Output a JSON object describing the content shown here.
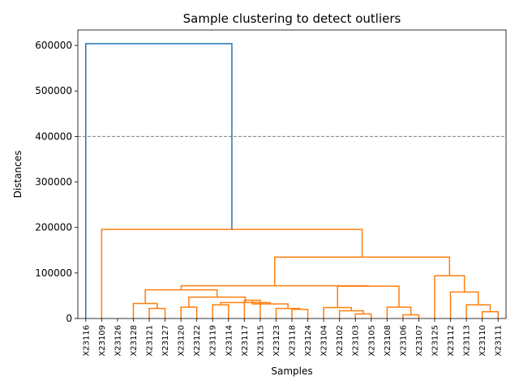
{
  "chart_data": {
    "type": "dendrogram",
    "title": "Sample clustering to detect outliers",
    "xlabel": "Samples",
    "ylabel": "Distances",
    "ylim": [
      0,
      634000
    ],
    "yticks": [
      0,
      100000,
      200000,
      300000,
      400000,
      500000,
      600000
    ],
    "ytick_labels": [
      "0",
      "100000",
      "200000",
      "300000",
      "400000",
      "500000",
      "600000"
    ],
    "threshold": 400000,
    "leaves": [
      "X23116",
      "X23109",
      "X23126",
      "X23128",
      "X23121",
      "X23127",
      "X23120",
      "X23122",
      "X23119",
      "X23114",
      "X23117",
      "X23115",
      "X23123",
      "X23118",
      "X23124",
      "X23104",
      "X23102",
      "X23103",
      "X23105",
      "X23108",
      "X23106",
      "X23107",
      "X23125",
      "X23112",
      "X23113",
      "X23110",
      "X23111"
    ],
    "colors": {
      "top": "#1f77b4",
      "cluster": "#ff7f0e",
      "threshold": "#808080"
    },
    "merges": [
      {
        "left": 4.0,
        "right": 5.0,
        "left_h": 0,
        "right_h": 0,
        "height": 22000,
        "color": "cluster"
      },
      {
        "left": 3.0,
        "right": 4.5,
        "left_h": 0,
        "right_h": 22000,
        "height": 33000,
        "color": "cluster"
      },
      {
        "left": 6.0,
        "right": 7.0,
        "left_h": 0,
        "right_h": 0,
        "height": 25000,
        "color": "cluster"
      },
      {
        "left": 8.0,
        "right": 9.0,
        "left_h": 0,
        "right_h": 0,
        "height": 30000,
        "color": "cluster"
      },
      {
        "left": 13.0,
        "right": 14.0,
        "left_h": 0,
        "right_h": 0,
        "height": 20000,
        "color": "cluster"
      },
      {
        "left": 12.0,
        "right": 13.5,
        "left_h": 0,
        "right_h": 20000,
        "height": 22000,
        "color": "cluster"
      },
      {
        "left": 10.0,
        "right": 11.0,
        "left_h": 0,
        "right_h": 0,
        "height": 40000,
        "color": "cluster"
      },
      {
        "left": 10.5,
        "right": 12.75,
        "left_h": 40000,
        "right_h": 22000,
        "height": 32000,
        "color": "cluster"
      },
      {
        "left": 8.5,
        "right": 11.625,
        "left_h": 30000,
        "right_h": 32000,
        "height": 35000,
        "color": "cluster"
      },
      {
        "left": 6.5,
        "right": 10.0625,
        "left_h": 25000,
        "right_h": 35000,
        "height": 47000,
        "color": "cluster"
      },
      {
        "left": 3.75,
        "right": 8.28125,
        "left_h": 33000,
        "right_h": 47000,
        "height": 63000,
        "color": "cluster"
      },
      {
        "left": 17.0,
        "right": 18.0,
        "left_h": 0,
        "right_h": 0,
        "height": 10000,
        "color": "cluster"
      },
      {
        "left": 16.0,
        "right": 17.5,
        "left_h": 0,
        "right_h": 10000,
        "height": 17000,
        "color": "cluster"
      },
      {
        "left": 15.0,
        "right": 16.75,
        "left_h": 0,
        "right_h": 17000,
        "height": 24000,
        "color": "cluster"
      },
      {
        "left": 20.0,
        "right": 21.0,
        "left_h": 0,
        "right_h": 0,
        "height": 8000,
        "color": "cluster"
      },
      {
        "left": 19.0,
        "right": 20.5,
        "left_h": 0,
        "right_h": 8000,
        "height": 25000,
        "color": "cluster"
      },
      {
        "left": 15.875,
        "right": 19.75,
        "left_h": 24000,
        "right_h": 25000,
        "height": 71000,
        "color": "cluster"
      },
      {
        "left": 6.015625,
        "right": 17.8125,
        "left_h": 63000,
        "right_h": 71000,
        "height": 72000,
        "color": "cluster"
      },
      {
        "left": 25.0,
        "right": 26.0,
        "left_h": 0,
        "right_h": 0,
        "height": 15000,
        "color": "cluster"
      },
      {
        "left": 24.0,
        "right": 25.5,
        "left_h": 0,
        "right_h": 15000,
        "height": 30000,
        "color": "cluster"
      },
      {
        "left": 23.0,
        "right": 24.75,
        "left_h": 0,
        "right_h": 30000,
        "height": 58000,
        "color": "cluster"
      },
      {
        "left": 22.0,
        "right": 23.875,
        "left_h": 0,
        "right_h": 58000,
        "height": 94000,
        "color": "cluster"
      },
      {
        "left": 11.9140625,
        "right": 22.9375,
        "left_h": 72000,
        "right_h": 94000,
        "height": 135000,
        "color": "cluster"
      },
      {
        "left": 1.0,
        "right": 17.42578125,
        "left_h": 0,
        "right_h": 135000,
        "height": 196000,
        "color": "cluster"
      },
      {
        "left": 0.0,
        "right": 9.212890625,
        "left_h": 0,
        "right_h": 196000,
        "height": 604000,
        "color": "top"
      }
    ]
  }
}
